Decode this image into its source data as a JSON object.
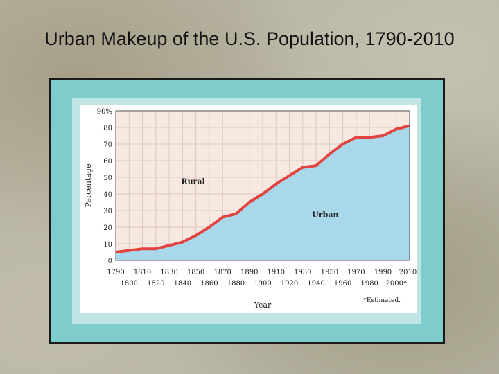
{
  "slide": {
    "title": "Urban Makeup of the U.S. Population, 1790-2010"
  },
  "colors": {
    "urban_fill": "#a8d8ea",
    "rural_fill": "#f7e9e2",
    "boundary": "#e2433f",
    "grid": "#d8c8c0",
    "mat": "#7fcccc"
  },
  "chart_data": {
    "type": "area",
    "xlabel": "Year",
    "ylabel": "Percentage",
    "xlim": [
      1790,
      2010
    ],
    "ylim": [
      0,
      90
    ],
    "y_ticks": [
      "0",
      "10",
      "20",
      "30",
      "40",
      "50",
      "60",
      "70",
      "80",
      "90%"
    ],
    "x_ticks_top": [
      "1790",
      "1810",
      "1830",
      "1850",
      "1870",
      "1890",
      "1910",
      "1930",
      "1950",
      "1970",
      "1990",
      "2010*"
    ],
    "x_ticks_bottom": [
      "1800",
      "1820",
      "1840",
      "1860",
      "1880",
      "1900",
      "1920",
      "1940",
      "1960",
      "1980",
      "2000*"
    ],
    "area_labels": [
      "Rural",
      "Urban"
    ],
    "footnote": "*Estimated.",
    "grid": true,
    "series": [
      {
        "name": "Urban",
        "x": [
          1790,
          1800,
          1810,
          1820,
          1830,
          1840,
          1850,
          1860,
          1870,
          1880,
          1890,
          1900,
          1910,
          1920,
          1930,
          1940,
          1950,
          1960,
          1970,
          1980,
          1990,
          2000,
          2010
        ],
        "y": [
          5,
          6,
          7,
          7,
          9,
          11,
          15,
          20,
          26,
          28,
          35,
          40,
          46,
          51,
          56,
          57,
          64,
          70,
          74,
          74,
          75,
          79,
          81
        ]
      }
    ]
  }
}
